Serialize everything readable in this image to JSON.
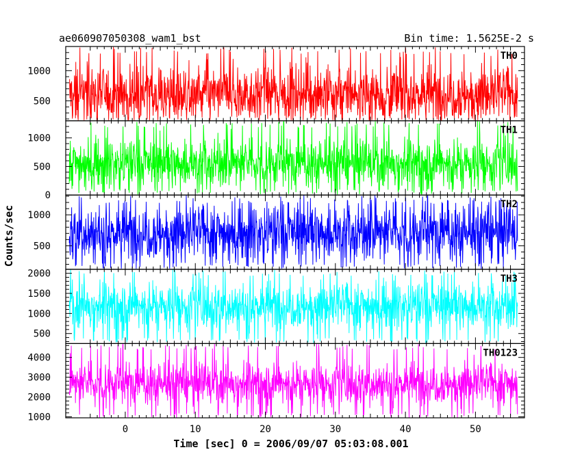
{
  "chart_data": {
    "type": "line",
    "title_left": "ae060907050308_wam1_bst",
    "title_right": "Bin time: 1.5625E-2 s",
    "xlabel": "Time [sec] 0 = 2006/09/07 05:03:08.001",
    "ylabel": "Counts/sec",
    "xlim": [
      -8.5,
      57
    ],
    "x_range": [
      -8,
      56
    ],
    "x_ticks": [
      0,
      10,
      20,
      30,
      40,
      50
    ],
    "panels": [
      {
        "name": "TH0",
        "color": "#ff0000",
        "ylim": [
          170,
          1400
        ],
        "y_ticks": [
          500,
          1000
        ],
        "baseline": 620,
        "spread": 330,
        "min": 180,
        "max": 1400
      },
      {
        "name": "TH1",
        "color": "#00ff00",
        "ylim": [
          0,
          1300
        ],
        "y_ticks": [
          0,
          500,
          1000
        ],
        "baseline": 560,
        "spread": 300,
        "min": 10,
        "max": 1300
      },
      {
        "name": "TH2",
        "color": "#0000ff",
        "ylim": [
          120,
          1320
        ],
        "y_ticks": [
          500,
          1000
        ],
        "baseline": 720,
        "spread": 330,
        "min": 130,
        "max": 1320
      },
      {
        "name": "TH3",
        "color": "#00ffff",
        "ylim": [
          250,
          2100
        ],
        "y_ticks": [
          500,
          1000,
          1500,
          2000
        ],
        "baseline": 1200,
        "spread": 420,
        "min": 260,
        "max": 2100
      },
      {
        "name": "TH0123",
        "color": "#ff00ff",
        "ylim": [
          950,
          4700
        ],
        "y_ticks": [
          1000,
          2000,
          3000,
          4000
        ],
        "baseline": 2700,
        "spread": 760,
        "min": 960,
        "max": 4700
      }
    ]
  }
}
